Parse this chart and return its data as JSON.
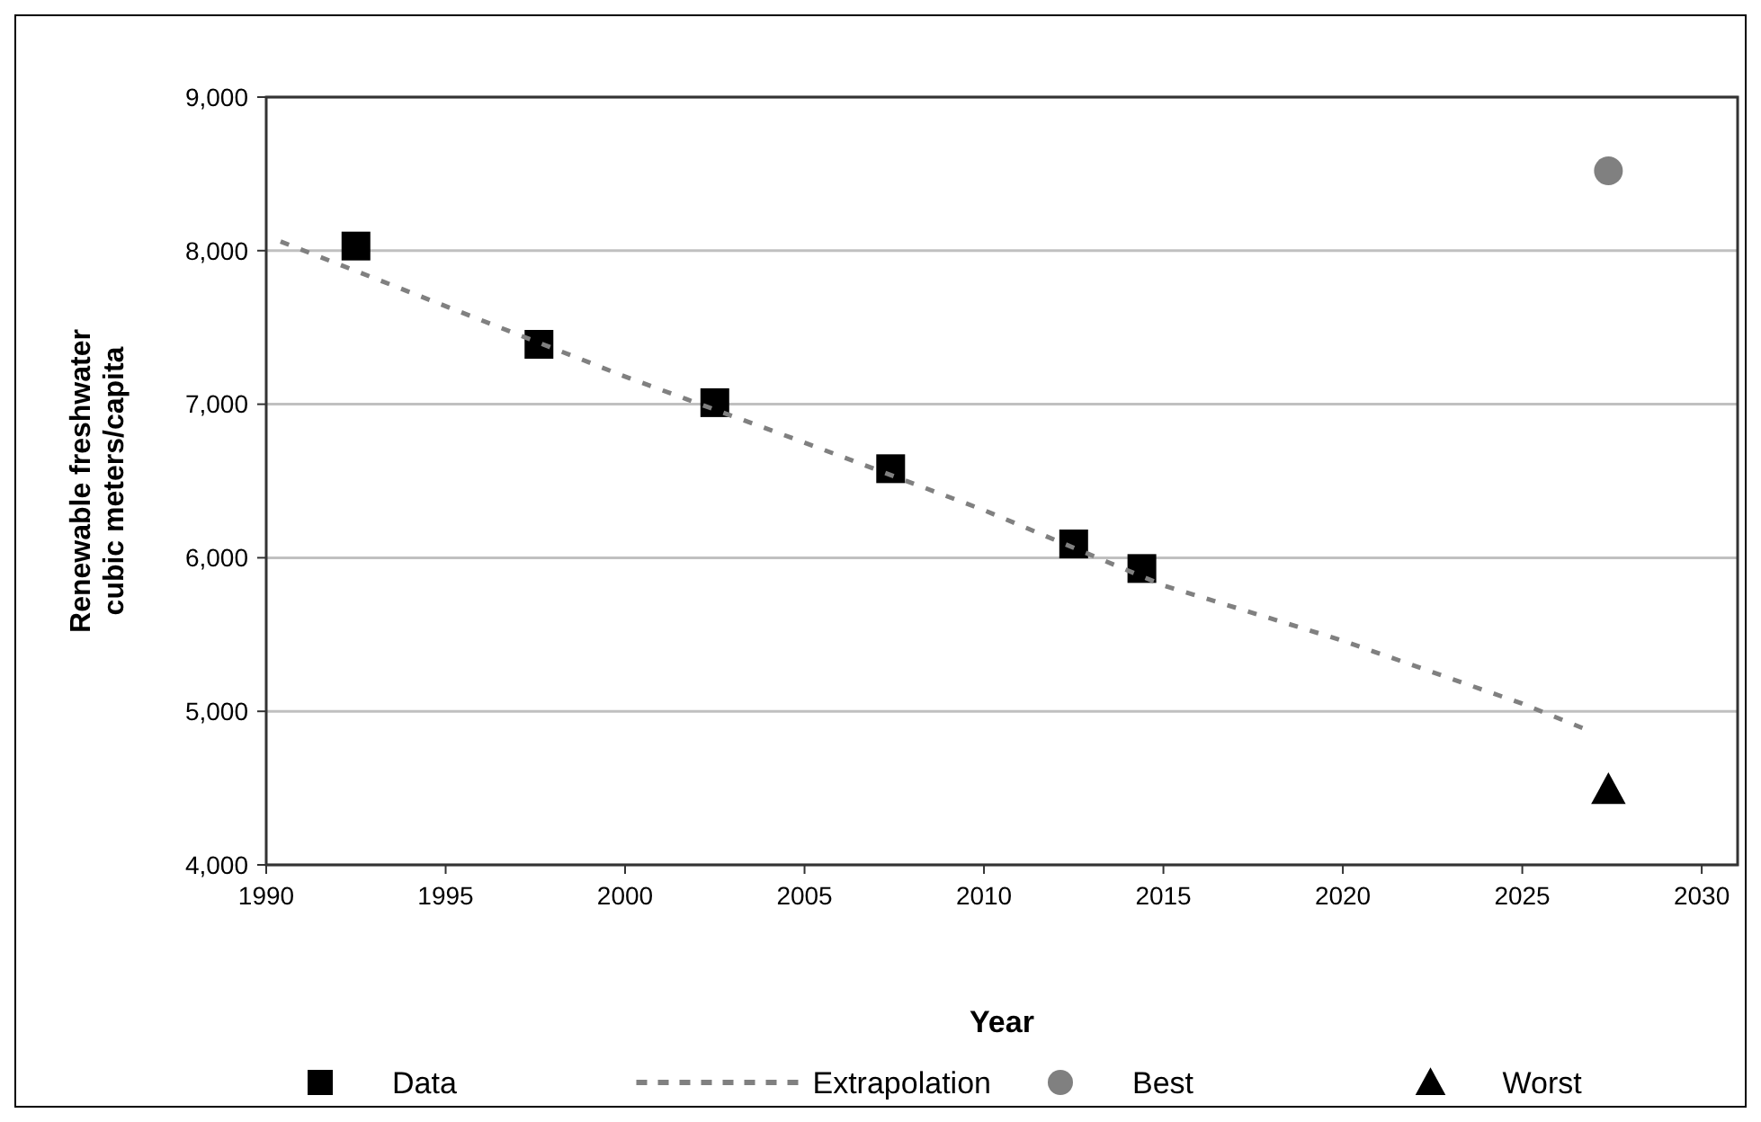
{
  "chart_data": {
    "type": "scatter",
    "xlabel": "Year",
    "ylabel": "Renewable freshwater\ncubic meters/capita",
    "xlim": [
      1990,
      2031
    ],
    "xticks": [
      1990,
      1995,
      2000,
      2005,
      2010,
      2015,
      2020,
      2025,
      2030
    ],
    "ylim": [
      4000,
      9000
    ],
    "yticks": [
      {
        "value": 4000,
        "label": "4,000"
      },
      {
        "value": 5000,
        "label": "5,000"
      },
      {
        "value": 6000,
        "label": "6,000"
      },
      {
        "value": 7000,
        "label": "7,000"
      },
      {
        "value": 8000,
        "label": "8,000"
      },
      {
        "value": 9000,
        "label": "9,000"
      }
    ],
    "grid": "y",
    "legend": "bottom",
    "series": [
      {
        "name": "Data",
        "marker": "square",
        "color": "#000000",
        "x": [
          1992.5,
          1997.6,
          2002.5,
          2007.4,
          2012.5,
          2014.4
        ],
        "values": [
          8030,
          7390,
          7010,
          6580,
          6090,
          5930
        ]
      },
      {
        "name": "Extrapolation",
        "type": "line",
        "line_style": "dashed",
        "marker": "none",
        "color": "#808080",
        "x": [
          1990.4,
          2000,
          2005,
          2010,
          2015,
          2020,
          2025,
          2026.8
        ],
        "values": [
          8060,
          7180,
          6750,
          6310,
          5820,
          5460,
          5050,
          4880
        ]
      },
      {
        "name": "Best",
        "marker": "circle",
        "color": "#808080",
        "x": [
          2027.4
        ],
        "values": [
          8520
        ]
      },
      {
        "name": "Worst",
        "marker": "triangle",
        "color": "#000000",
        "x": [
          2027.4
        ],
        "values": [
          4490
        ]
      }
    ]
  }
}
